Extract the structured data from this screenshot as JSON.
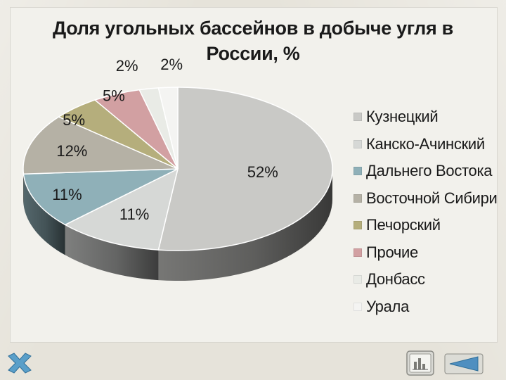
{
  "chart_data": {
    "type": "pie",
    "title": "Доля угольных бассейнов в добыче угля в\nРоссии, %",
    "categories": [
      "Кузнецкий",
      "Канско-Ачинский",
      "Дальнего Востока",
      "Восточной Сибири",
      "Печорский",
      "Прочие",
      "Донбасс",
      "Урала"
    ],
    "values": [
      52,
      11,
      11,
      12,
      5,
      5,
      2,
      2
    ],
    "value_labels": [
      "52%",
      "11%",
      "11%",
      "12%",
      "5%",
      "5%",
      "2%",
      "2%"
    ],
    "colors": [
      "#c9c9c6",
      "#d6d8d6",
      "#8fb0b8",
      "#b5b1a5",
      "#b5ae7c",
      "#d2a0a2",
      "#e9ebe6",
      "#f4f4f2"
    ],
    "legend_position": "right",
    "style": "3d"
  },
  "icons": {
    "close": "close-x-icon",
    "chart": "chart-icon",
    "back": "back-arrow-icon"
  }
}
